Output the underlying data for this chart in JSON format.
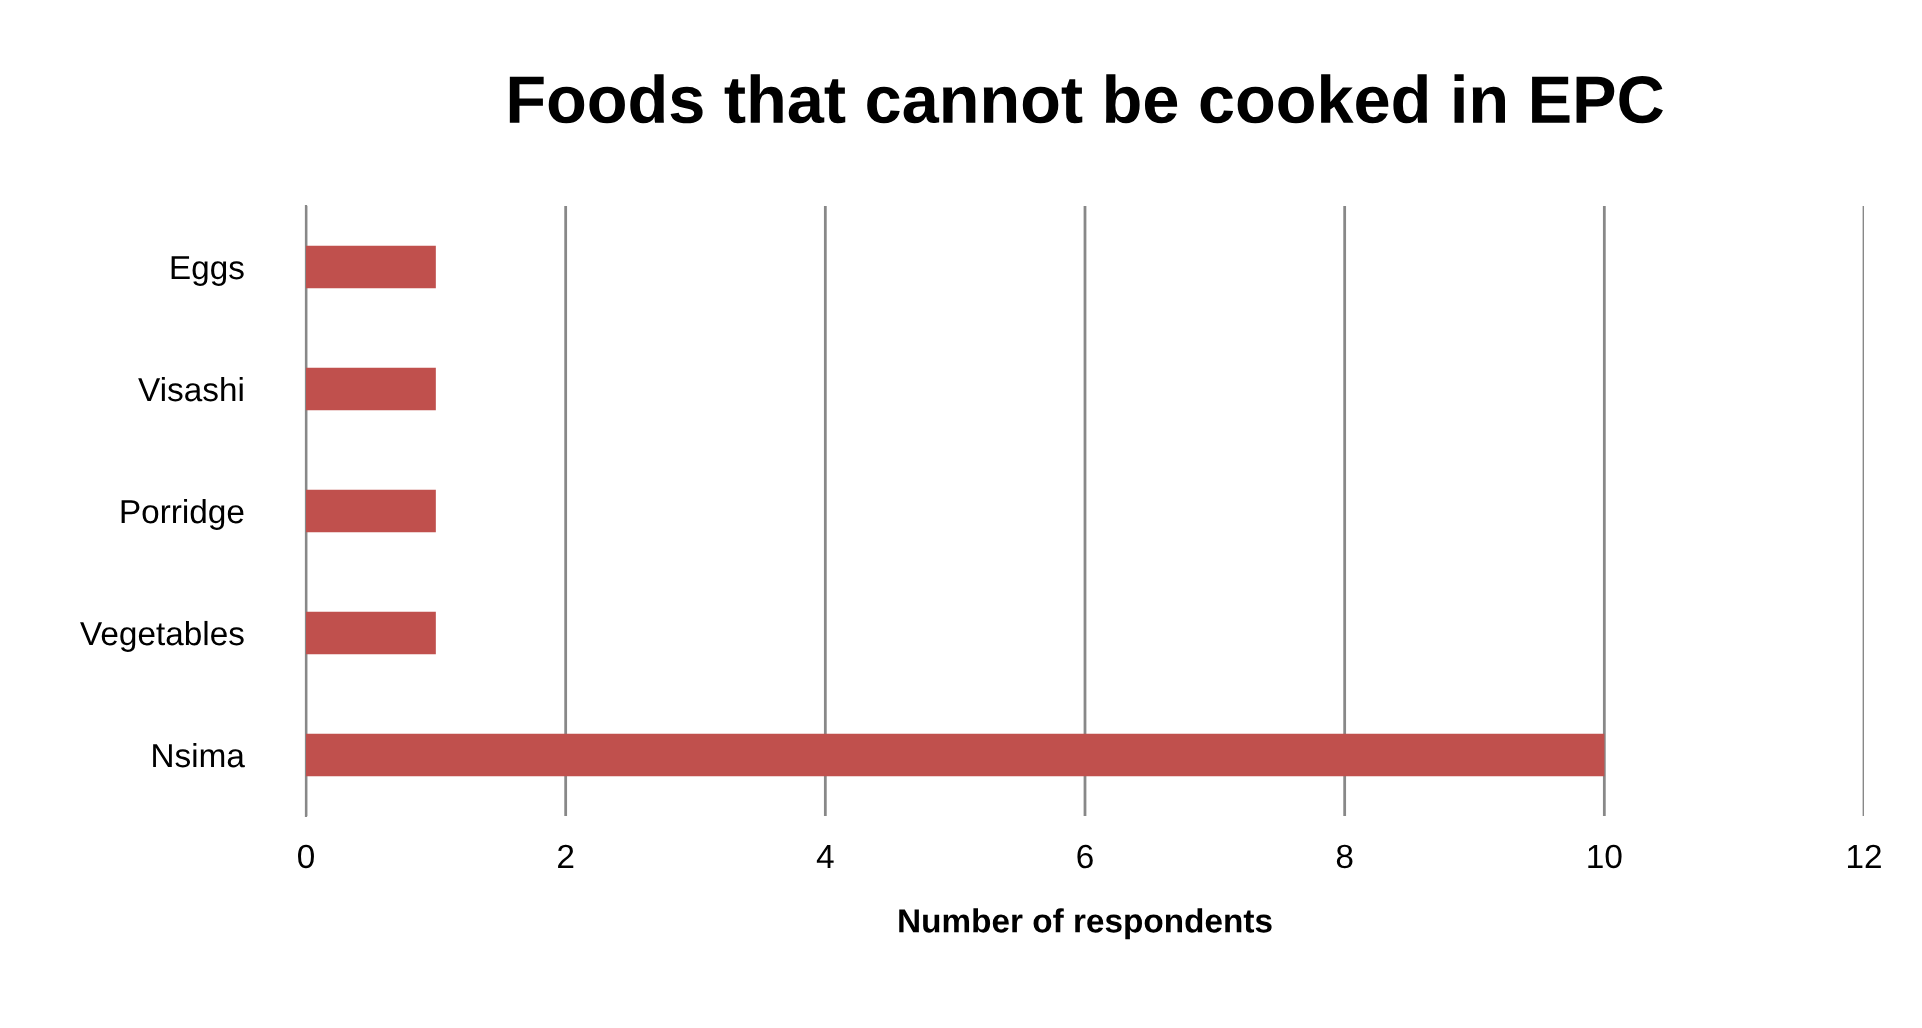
{
  "chart_data": {
    "type": "bar",
    "orientation": "horizontal",
    "title": "Foods that cannot be cooked in EPC",
    "xlabel": "Number of respondents",
    "categories": [
      "Eggs",
      "Visashi",
      "Porridge",
      "Vegetables",
      "Nsima"
    ],
    "values": [
      1,
      1,
      1,
      1,
      10
    ],
    "color": "#c0504d",
    "xlim": [
      0,
      12
    ],
    "xticks": [
      0,
      2,
      4,
      6,
      8,
      10,
      12
    ],
    "grid": "x"
  }
}
